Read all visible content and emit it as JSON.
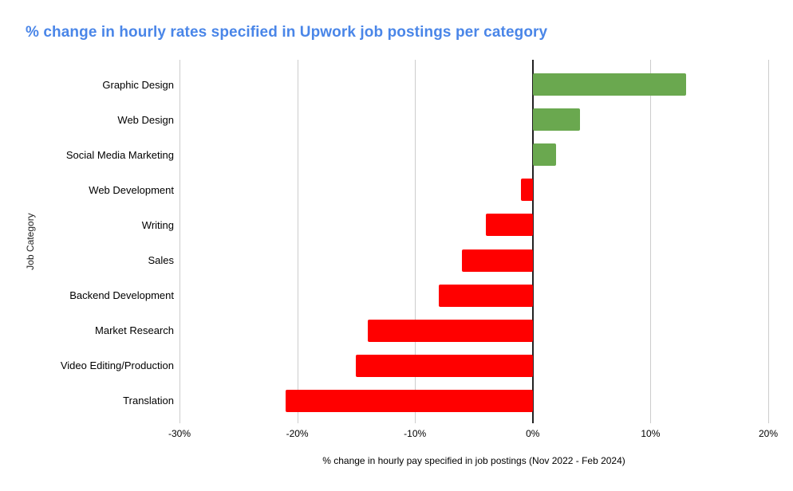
{
  "chart": {
    "title": "% change in hourly rates specified in Upwork job postings per category",
    "title_color": "#4a86e8"
  },
  "chart_data": {
    "type": "bar",
    "orientation": "horizontal",
    "title": "% change in hourly rates specified in Upwork job postings per category",
    "xlabel": "% change in hourly pay specified in job postings (Nov 2022 - Feb 2024)",
    "ylabel": "Job Category",
    "categories": [
      "Graphic Design",
      "Web Design",
      "Social Media Marketing",
      "Web Development",
      "Writing",
      "Sales",
      "Backend Development",
      "Market Research",
      "Video Editing/Production",
      "Translation"
    ],
    "values": [
      13,
      4,
      2,
      -1,
      -4,
      -6,
      -8,
      -14,
      -15,
      -21
    ],
    "value_unit": "%",
    "xlim": [
      -30,
      20
    ],
    "x_tick_values": [
      -30,
      -20,
      -10,
      0,
      10,
      20
    ],
    "x_tick_labels": [
      "-30%",
      "-20%",
      "-10%",
      "0%",
      "10%",
      "20%"
    ],
    "grid": true,
    "legend_position": "none",
    "colors": {
      "positive": "#6aa84f",
      "negative": "#ff0000",
      "gridline": "#cccccc",
      "zero_axis": "#212121"
    }
  }
}
